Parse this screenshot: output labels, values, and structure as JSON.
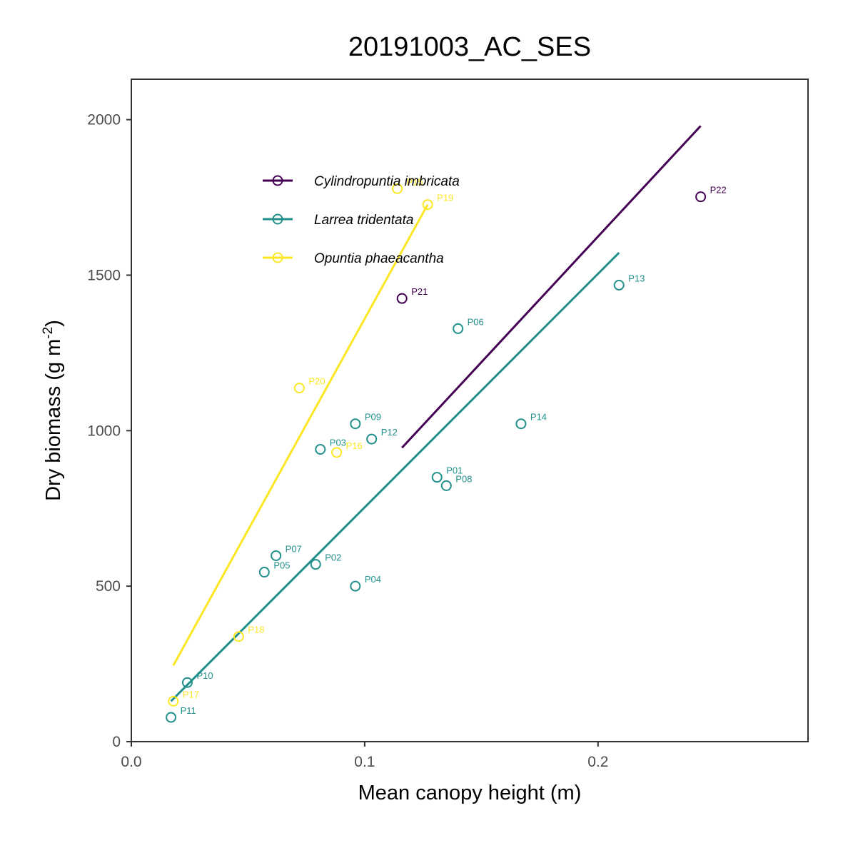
{
  "chart_data": {
    "type": "scatter",
    "title": "20191003_AC_SES",
    "xlabel": "Mean canopy height (m)",
    "ylabel": "Dry biomass (g m",
    "ylabel_sup": "-2",
    "ylabel_close": ")",
    "xlim": [
      0.0,
      0.29
    ],
    "ylim": [
      0,
      2130
    ],
    "xticks": [
      "0.0",
      "0.1",
      "0.2"
    ],
    "yticks": [
      "0",
      "500",
      "1000",
      "1500",
      "2000"
    ],
    "grid": false,
    "legend_position": "top-left",
    "colors": {
      "Cylindropuntia imbricata": "#440154",
      "Larrea tridentata": "#21908C",
      "Opuntia phaeacantha": "#FDE725"
    },
    "series": [
      {
        "name": "Cylindropuntia imbricata",
        "color": "#440154",
        "points": [
          {
            "label": "P21",
            "x": 0.116,
            "y": 1425
          },
          {
            "label": "P22",
            "x": 0.244,
            "y": 1752
          }
        ],
        "fit": {
          "x": [
            0.116,
            0.244
          ],
          "y": [
            945,
            1980
          ]
        }
      },
      {
        "name": "Larrea tridentata",
        "color": "#21908C",
        "points": [
          {
            "label": "P01",
            "x": 0.131,
            "y": 850
          },
          {
            "label": "P02",
            "x": 0.079,
            "y": 570
          },
          {
            "label": "P03",
            "x": 0.081,
            "y": 940
          },
          {
            "label": "P04",
            "x": 0.096,
            "y": 500
          },
          {
            "label": "P05",
            "x": 0.057,
            "y": 545
          },
          {
            "label": "P06",
            "x": 0.14,
            "y": 1328
          },
          {
            "label": "P07",
            "x": 0.062,
            "y": 598
          },
          {
            "label": "P08",
            "x": 0.135,
            "y": 823
          },
          {
            "label": "P09",
            "x": 0.096,
            "y": 1022
          },
          {
            "label": "P10",
            "x": 0.024,
            "y": 190
          },
          {
            "label": "P11",
            "x": 0.017,
            "y": 78
          },
          {
            "label": "P12",
            "x": 0.103,
            "y": 973
          },
          {
            "label": "P13",
            "x": 0.209,
            "y": 1468
          },
          {
            "label": "P14",
            "x": 0.167,
            "y": 1022
          }
        ],
        "fit": {
          "x": [
            0.017,
            0.209
          ],
          "y": [
            130,
            1572
          ]
        }
      },
      {
        "name": "Opuntia phaeacantha",
        "color": "#FDE725",
        "points": [
          {
            "label": "P15",
            "x": 0.114,
            "y": 1778
          },
          {
            "label": "P16",
            "x": 0.088,
            "y": 930
          },
          {
            "label": "P17",
            "x": 0.018,
            "y": 130
          },
          {
            "label": "P18",
            "x": 0.046,
            "y": 338
          },
          {
            "label": "P19",
            "x": 0.127,
            "y": 1727
          },
          {
            "label": "P20",
            "x": 0.072,
            "y": 1137
          }
        ],
        "fit": {
          "x": [
            0.018,
            0.127
          ],
          "y": [
            245,
            1727
          ]
        }
      }
    ]
  }
}
